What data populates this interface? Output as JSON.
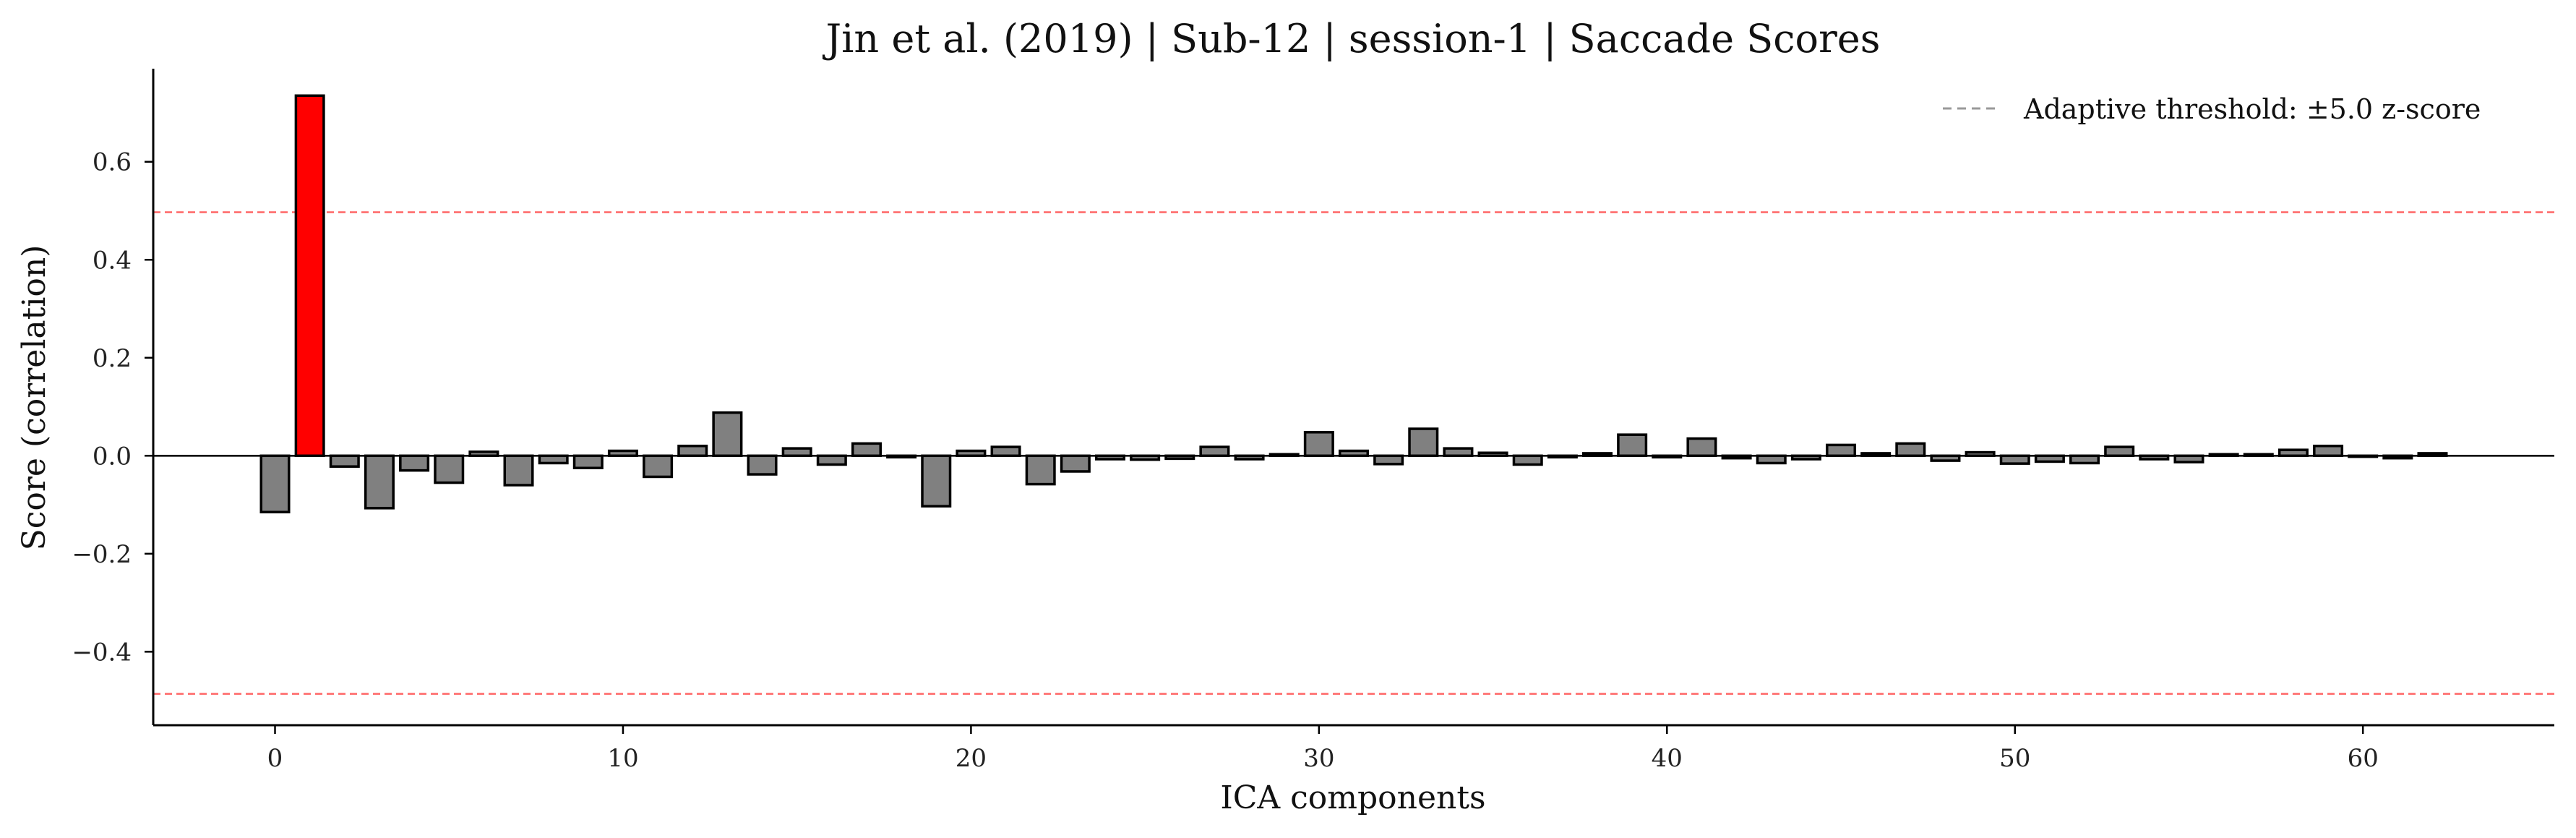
{
  "chart_data": {
    "type": "bar",
    "title": "Jin et al. (2019) | Sub-12 | session-1 | Saccade Scores",
    "xlabel": "ICA components",
    "ylabel": "Score (correlation)",
    "xlim": [
      -3.5,
      65.5
    ],
    "ylim": [
      -0.55,
      0.79
    ],
    "xticks": [
      0,
      10,
      20,
      30,
      40,
      50,
      60
    ],
    "yticks": [
      -0.4,
      -0.2,
      0.0,
      0.2,
      0.4,
      0.6
    ],
    "ytick_labels": [
      "−0.4",
      "−0.2",
      "0.0",
      "0.2",
      "0.4",
      "0.6"
    ],
    "x": [
      0,
      1,
      2,
      3,
      4,
      5,
      6,
      7,
      8,
      9,
      10,
      11,
      12,
      13,
      14,
      15,
      16,
      17,
      18,
      19,
      20,
      21,
      22,
      23,
      24,
      25,
      26,
      27,
      28,
      29,
      30,
      31,
      32,
      33,
      34,
      35,
      36,
      37,
      38,
      39,
      40,
      41,
      42,
      43,
      44,
      45,
      46,
      47,
      48,
      49,
      50,
      51,
      52,
      53,
      54,
      55,
      56,
      57,
      58,
      59,
      60,
      61,
      62
    ],
    "values": [
      -0.115,
      0.735,
      -0.022,
      -0.107,
      -0.03,
      -0.055,
      0.008,
      -0.06,
      -0.015,
      -0.025,
      0.01,
      -0.043,
      0.02,
      0.088,
      -0.038,
      0.015,
      -0.018,
      0.025,
      -0.003,
      -0.103,
      0.01,
      0.018,
      -0.058,
      -0.032,
      -0.007,
      -0.008,
      -0.006,
      0.018,
      -0.007,
      0.003,
      0.048,
      0.01,
      -0.017,
      0.055,
      0.015,
      0.006,
      -0.018,
      -0.003,
      0.005,
      0.043,
      -0.003,
      0.035,
      -0.005,
      -0.015,
      -0.007,
      0.022,
      0.005,
      0.025,
      -0.01,
      0.007,
      -0.016,
      -0.012,
      -0.015,
      0.018,
      -0.007,
      -0.013,
      0.003,
      0.003,
      0.012,
      0.02,
      -0.002,
      -0.005,
      0.005
    ],
    "flagged_indices": [
      1
    ],
    "threshold": {
      "upper": 0.497,
      "lower": -0.486,
      "legend_label": "Adaptive threshold: ±5.0 z-score"
    },
    "legend_position": "upper-right",
    "grid": false,
    "colors": {
      "bar": "#808080",
      "flagged": "#ff0000",
      "edge": "#000000",
      "threshold": "#ff6666",
      "legend_line": "#999999"
    }
  }
}
